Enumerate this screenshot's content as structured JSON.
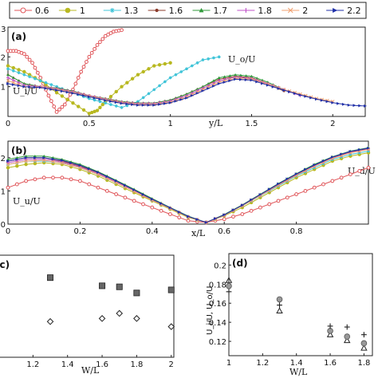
{
  "legend": {
    "entries": [
      "0.6",
      "1",
      "1.3",
      "1.6",
      "1.7",
      "1.8",
      "2",
      "2.2"
    ],
    "colors": [
      "#e0565a",
      "#b8b820",
      "#40c4d8",
      "#8b3a2a",
      "#2f9a3a",
      "#c050c8",
      "#f0a070",
      "#1f2fa8"
    ],
    "markers": [
      "circle-open",
      "circle",
      "star",
      "dot",
      "triangle",
      "plus",
      "x",
      "triangle-right"
    ]
  },
  "chart_data": [
    {
      "panel_label": "(a)",
      "type": "line",
      "xlabel": "y/L",
      "ylabel_left": "U_i/U",
      "ylabel_right": "U_o/U",
      "xlim": [
        0,
        2.2
      ],
      "ylim": [
        0,
        0.3
      ],
      "xticks": [
        "0",
        "0.5",
        "1",
        "1.5",
        "2"
      ],
      "yticks": [
        ".2",
        ".1"
      ],
      "ytick_values": [
        0.2,
        0.1
      ],
      "ytick_partial": ".3",
      "series": [
        {
          "name": "0.6",
          "x": [
            0,
            0.05,
            0.1,
            0.15,
            0.2,
            0.25,
            0.3,
            0.35,
            0.4,
            0.45,
            0.5,
            0.55,
            0.6,
            0.65,
            0.7
          ],
          "y": [
            0.22,
            0.22,
            0.21,
            0.18,
            0.13,
            0.07,
            0.015,
            0.04,
            0.09,
            0.15,
            0.2,
            0.24,
            0.27,
            0.285,
            0.29
          ]
        },
        {
          "name": "1",
          "x": [
            0,
            0.1,
            0.2,
            0.3,
            0.4,
            0.5,
            0.55,
            0.6,
            0.7,
            0.8,
            0.9,
            1.0
          ],
          "y": [
            0.17,
            0.15,
            0.12,
            0.08,
            0.045,
            0.01,
            0.02,
            0.05,
            0.1,
            0.14,
            0.17,
            0.18
          ]
        },
        {
          "name": "1.3",
          "x": [
            0,
            0.1,
            0.2,
            0.3,
            0.4,
            0.5,
            0.6,
            0.7,
            0.8,
            0.9,
            1.0,
            1.1,
            1.2,
            1.3
          ],
          "y": [
            0.16,
            0.14,
            0.12,
            0.1,
            0.08,
            0.06,
            0.045,
            0.03,
            0.05,
            0.09,
            0.13,
            0.16,
            0.19,
            0.2
          ]
        },
        {
          "name": "1.6",
          "x": [
            0,
            0.1,
            0.2,
            0.3,
            0.4,
            0.5,
            0.6,
            0.7,
            0.8,
            0.9,
            1.0,
            1.1,
            1.2,
            1.3,
            1.4,
            1.5,
            1.6,
            1.7
          ],
          "y": [
            0.14,
            0.11,
            0.1,
            0.095,
            0.085,
            0.07,
            0.06,
            0.05,
            0.045,
            0.045,
            0.055,
            0.075,
            0.1,
            0.125,
            0.135,
            0.13,
            0.11,
            0.085
          ]
        },
        {
          "name": "1.7",
          "x": [
            0,
            0.1,
            0.2,
            0.3,
            0.4,
            0.5,
            0.6,
            0.7,
            0.8,
            0.9,
            1.0,
            1.1,
            1.2,
            1.3,
            1.4,
            1.5,
            1.6,
            1.7
          ],
          "y": [
            0.14,
            0.11,
            0.1,
            0.095,
            0.085,
            0.07,
            0.06,
            0.05,
            0.045,
            0.045,
            0.055,
            0.075,
            0.1,
            0.13,
            0.14,
            0.135,
            0.115,
            0.09
          ]
        },
        {
          "name": "1.8",
          "x": [
            0,
            0.1,
            0.2,
            0.3,
            0.4,
            0.5,
            0.6,
            0.7,
            0.8,
            0.9,
            1.0,
            1.1,
            1.2,
            1.3,
            1.4,
            1.5,
            1.6,
            1.7,
            1.8
          ],
          "y": [
            0.13,
            0.105,
            0.1,
            0.093,
            0.083,
            0.07,
            0.058,
            0.048,
            0.043,
            0.043,
            0.052,
            0.07,
            0.095,
            0.12,
            0.132,
            0.128,
            0.11,
            0.09,
            0.07
          ]
        },
        {
          "name": "2",
          "x": [
            0,
            0.1,
            0.2,
            0.3,
            0.4,
            0.5,
            0.6,
            0.7,
            0.8,
            0.9,
            1.0,
            1.1,
            1.2,
            1.3,
            1.4,
            1.5,
            1.6,
            1.7,
            1.8,
            1.9,
            2.0
          ],
          "y": [
            0.12,
            0.1,
            0.098,
            0.09,
            0.08,
            0.068,
            0.056,
            0.046,
            0.04,
            0.04,
            0.048,
            0.065,
            0.09,
            0.115,
            0.128,
            0.125,
            0.108,
            0.09,
            0.075,
            0.06,
            0.05
          ]
        },
        {
          "name": "2.2",
          "x": [
            0,
            0.1,
            0.2,
            0.3,
            0.4,
            0.5,
            0.6,
            0.7,
            0.8,
            0.9,
            1.0,
            1.1,
            1.2,
            1.3,
            1.4,
            1.5,
            1.6,
            1.7,
            1.8,
            1.9,
            2.0,
            2.1,
            2.2
          ],
          "y": [
            0.11,
            0.1,
            0.097,
            0.088,
            0.078,
            0.066,
            0.054,
            0.044,
            0.038,
            0.038,
            0.046,
            0.062,
            0.086,
            0.11,
            0.125,
            0.122,
            0.105,
            0.088,
            0.072,
            0.058,
            0.046,
            0.038,
            0.035
          ]
        }
      ]
    },
    {
      "panel_label": "(b)",
      "type": "line",
      "xlabel": "x/L",
      "ylabel_left": "U_u/U",
      "ylabel_right": "U_d/U",
      "xlim": [
        0,
        1
      ],
      "ylim": [
        0,
        0.25
      ],
      "xticks": [
        "0",
        "0.2",
        "0.4",
        "0.6",
        "0.8"
      ],
      "xtick_values": [
        0,
        0.2,
        0.4,
        0.6,
        0.8
      ],
      "yticks": [
        ".2",
        ".1",
        "0"
      ],
      "ytick_values": [
        0.2,
        0.1,
        0
      ],
      "series": [
        {
          "name": "0.6",
          "x": [
            0,
            0.05,
            0.1,
            0.15,
            0.2,
            0.25,
            0.3,
            0.35,
            0.4,
            0.45,
            0.5,
            0.55,
            0.6,
            0.65,
            0.7,
            0.75,
            0.8,
            0.85,
            0.9,
            0.95,
            1.0
          ],
          "y": [
            0.11,
            0.13,
            0.14,
            0.14,
            0.13,
            0.11,
            0.09,
            0.07,
            0.05,
            0.03,
            0.01,
            0.005,
            0.015,
            0.03,
            0.05,
            0.07,
            0.09,
            0.11,
            0.13,
            0.15,
            0.17
          ]
        },
        {
          "name": "1",
          "x": [
            0,
            0.05,
            0.1,
            0.15,
            0.2,
            0.25,
            0.3,
            0.35,
            0.4,
            0.45,
            0.5,
            0.55,
            0.6,
            0.65,
            0.7,
            0.75,
            0.8,
            0.85,
            0.9,
            0.95,
            1.0
          ],
          "y": [
            0.17,
            0.18,
            0.185,
            0.18,
            0.165,
            0.145,
            0.12,
            0.095,
            0.07,
            0.045,
            0.02,
            0.005,
            0.025,
            0.05,
            0.08,
            0.11,
            0.14,
            0.165,
            0.19,
            0.205,
            0.215
          ]
        },
        {
          "name": "1.3",
          "x": [
            0,
            0.05,
            0.1,
            0.15,
            0.2,
            0.25,
            0.3,
            0.35,
            0.4,
            0.45,
            0.5,
            0.55,
            0.6,
            0.65,
            0.7,
            0.75,
            0.8,
            0.85,
            0.9,
            0.95,
            1.0
          ],
          "y": [
            0.18,
            0.19,
            0.19,
            0.185,
            0.17,
            0.15,
            0.125,
            0.1,
            0.072,
            0.047,
            0.022,
            0.005,
            0.027,
            0.055,
            0.085,
            0.115,
            0.145,
            0.17,
            0.195,
            0.21,
            0.22
          ]
        },
        {
          "name": "1.6",
          "x": [
            0,
            0.05,
            0.1,
            0.15,
            0.2,
            0.25,
            0.3,
            0.35,
            0.4,
            0.45,
            0.5,
            0.55,
            0.6,
            0.65,
            0.7,
            0.75,
            0.8,
            0.85,
            0.9,
            0.95,
            1.0
          ],
          "y": [
            0.19,
            0.2,
            0.2,
            0.19,
            0.175,
            0.155,
            0.13,
            0.103,
            0.075,
            0.049,
            0.023,
            0.005,
            0.028,
            0.057,
            0.088,
            0.12,
            0.15,
            0.177,
            0.2,
            0.217,
            0.227
          ]
        },
        {
          "name": "1.7",
          "x": [
            0,
            0.05,
            0.1,
            0.15,
            0.2,
            0.25,
            0.3,
            0.35,
            0.4,
            0.45,
            0.5,
            0.55,
            0.6,
            0.65,
            0.7,
            0.75,
            0.8,
            0.85,
            0.9,
            0.95,
            1.0
          ],
          "y": [
            0.195,
            0.205,
            0.205,
            0.195,
            0.18,
            0.158,
            0.132,
            0.105,
            0.077,
            0.05,
            0.024,
            0.005,
            0.029,
            0.058,
            0.09,
            0.122,
            0.152,
            0.18,
            0.203,
            0.22,
            0.23
          ]
        },
        {
          "name": "1.8",
          "x": [
            0,
            0.05,
            0.1,
            0.15,
            0.2,
            0.25,
            0.3,
            0.35,
            0.4,
            0.45,
            0.5,
            0.55,
            0.6,
            0.65,
            0.7,
            0.75,
            0.8,
            0.85,
            0.9,
            0.95,
            1.0
          ],
          "y": [
            0.185,
            0.195,
            0.196,
            0.187,
            0.172,
            0.152,
            0.127,
            0.1,
            0.073,
            0.048,
            0.022,
            0.005,
            0.027,
            0.056,
            0.087,
            0.118,
            0.148,
            0.175,
            0.199,
            0.216,
            0.226
          ]
        },
        {
          "name": "2",
          "x": [
            0,
            0.05,
            0.1,
            0.15,
            0.2,
            0.25,
            0.3,
            0.35,
            0.4,
            0.45,
            0.5,
            0.55,
            0.6,
            0.65,
            0.7,
            0.75,
            0.8,
            0.85,
            0.9,
            0.95,
            1.0
          ],
          "y": [
            0.18,
            0.19,
            0.192,
            0.184,
            0.17,
            0.15,
            0.125,
            0.099,
            0.072,
            0.047,
            0.022,
            0.005,
            0.027,
            0.055,
            0.086,
            0.117,
            0.147,
            0.174,
            0.198,
            0.215,
            0.225
          ]
        },
        {
          "name": "2.2",
          "x": [
            0,
            0.05,
            0.1,
            0.15,
            0.2,
            0.25,
            0.3,
            0.35,
            0.4,
            0.45,
            0.5,
            0.55,
            0.6,
            0.65,
            0.7,
            0.75,
            0.8,
            0.85,
            0.9,
            0.95,
            1.0
          ],
          "y": [
            0.19,
            0.2,
            0.2,
            0.192,
            0.177,
            0.156,
            0.13,
            0.103,
            0.075,
            0.049,
            0.023,
            0.005,
            0.028,
            0.057,
            0.089,
            0.121,
            0.151,
            0.178,
            0.202,
            0.219,
            0.229
          ]
        }
      ]
    },
    {
      "panel_label": "(c)",
      "type": "scatter",
      "xlabel": "W/L",
      "xlim": [
        1,
        2
      ],
      "ylim": [
        0,
        1
      ],
      "xticks": [
        "1.2",
        "1.4",
        "1.6",
        "1.8",
        "2"
      ],
      "xtick_values": [
        1.2,
        1.4,
        1.6,
        1.8,
        2.0
      ],
      "series": [
        {
          "marker": "square-filled",
          "x": [
            1.3,
            1.6,
            1.7,
            1.8,
            2.0
          ],
          "y": [
            0.78,
            0.7,
            0.69,
            0.63,
            0.66
          ]
        },
        {
          "marker": "diamond-open",
          "x": [
            1.3,
            1.6,
            1.7,
            1.8,
            2.0
          ],
          "y": [
            0.35,
            0.38,
            0.43,
            0.38,
            0.3
          ]
        }
      ]
    },
    {
      "panel_label": "(d)",
      "type": "scatter",
      "xlabel": "W/L",
      "ylabel": "U_i/U, U_o/U",
      "xlim": [
        1,
        1.85
      ],
      "ylim": [
        0.1,
        0.2
      ],
      "xticks": [
        "1",
        "1.2",
        "1.4",
        "1.6",
        "1.8"
      ],
      "xtick_values": [
        1,
        1.2,
        1.4,
        1.6,
        1.8
      ],
      "yticks": [
        "0.2",
        "0.18",
        "0.16",
        "0.14",
        "0.12"
      ],
      "ytick_values": [
        0.2,
        0.18,
        0.16,
        0.14,
        0.12
      ],
      "series": [
        {
          "marker": "triangle-open",
          "x": [
            1.0,
            1.3,
            1.6,
            1.7,
            1.8
          ],
          "y": [
            0.184,
            0.152,
            0.127,
            0.121,
            0.113
          ]
        },
        {
          "marker": "circle-gray",
          "x": [
            1.0,
            1.3,
            1.6,
            1.7,
            1.8
          ],
          "y": [
            0.178,
            0.164,
            0.131,
            0.125,
            0.118
          ]
        },
        {
          "marker": "plus",
          "x": [
            1.0,
            1.3,
            1.6,
            1.7,
            1.8
          ],
          "y": [
            0.172,
            0.158,
            0.136,
            0.135,
            0.127
          ]
        }
      ]
    }
  ]
}
